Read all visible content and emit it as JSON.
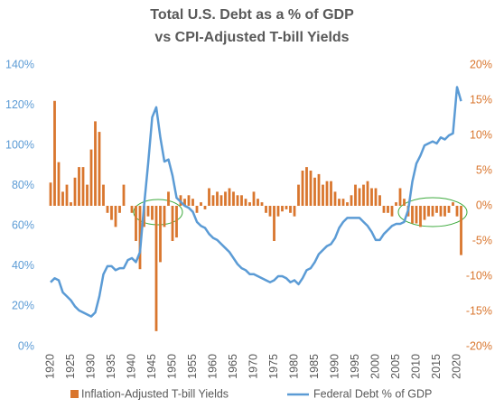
{
  "chart_data": {
    "type": "combo",
    "title": "Total U.S. Debt as a % of GDP",
    "subtitle": "vs CPI-Adjusted T-bill Yields",
    "x": [
      1920,
      1921,
      1922,
      1923,
      1924,
      1925,
      1926,
      1927,
      1928,
      1929,
      1930,
      1931,
      1932,
      1933,
      1934,
      1935,
      1936,
      1937,
      1938,
      1939,
      1940,
      1941,
      1942,
      1943,
      1944,
      1945,
      1946,
      1947,
      1948,
      1949,
      1950,
      1951,
      1952,
      1953,
      1954,
      1955,
      1956,
      1957,
      1958,
      1959,
      1960,
      1961,
      1962,
      1963,
      1964,
      1965,
      1966,
      1967,
      1968,
      1969,
      1970,
      1971,
      1972,
      1973,
      1974,
      1975,
      1976,
      1977,
      1978,
      1979,
      1980,
      1981,
      1982,
      1983,
      1984,
      1985,
      1986,
      1987,
      1988,
      1989,
      1990,
      1991,
      1992,
      1993,
      1994,
      1995,
      1996,
      1997,
      1998,
      1999,
      2000,
      2001,
      2002,
      2003,
      2004,
      2005,
      2006,
      2007,
      2008,
      2009,
      2010,
      2011,
      2012,
      2013,
      2014,
      2015,
      2016,
      2017,
      2018,
      2019,
      2020,
      2021
    ],
    "xlim": [
      1919,
      2022
    ],
    "xticks": [
      1920,
      1925,
      1930,
      1935,
      1940,
      1945,
      1950,
      1955,
      1960,
      1965,
      1970,
      1975,
      1980,
      1985,
      1990,
      1995,
      2000,
      2005,
      2010,
      2015,
      2020
    ],
    "ylim": [
      0,
      140
    ],
    "yticks": [
      {
        "value": 0,
        "label": "0%"
      },
      {
        "value": 20,
        "label": "20%"
      },
      {
        "value": 40,
        "label": "40%"
      },
      {
        "value": 60,
        "label": "60%"
      },
      {
        "value": 80,
        "label": "80%"
      },
      {
        "value": 100,
        "label": "100%"
      },
      {
        "value": 120,
        "label": "120%"
      },
      {
        "value": 140,
        "label": "140%"
      }
    ],
    "y2lim": [
      -20,
      20
    ],
    "y2ticks": [
      {
        "value": -20,
        "label": "-20%"
      },
      {
        "value": -15,
        "label": "-15%"
      },
      {
        "value": -10,
        "label": "-10%"
      },
      {
        "value": -5,
        "label": "-5%"
      },
      {
        "value": 0,
        "label": "0%"
      },
      {
        "value": 5,
        "label": "5%"
      },
      {
        "value": 10,
        "label": "10%"
      },
      {
        "value": 15,
        "label": "15%"
      },
      {
        "value": 20,
        "label": "20%"
      }
    ],
    "grid": false,
    "legend": "bottom",
    "series": [
      {
        "name": "Inflation-Adjusted T-bill Yields",
        "type": "bar",
        "axis": "y2",
        "color": "#d9762e",
        "values": [
          3.3,
          14.9,
          6.2,
          2,
          3,
          0.5,
          4,
          5.5,
          5.5,
          3,
          8,
          12,
          10.5,
          3,
          -1,
          -2,
          -3,
          -1,
          3,
          0,
          -1,
          -5,
          -9,
          -3,
          -1.5,
          -2,
          -17.8,
          -8,
          -3,
          2,
          -5,
          -4.5,
          1.5,
          1,
          1.5,
          1,
          -1,
          0.5,
          -0.5,
          2.5,
          1.5,
          2,
          1.5,
          2,
          2.5,
          2,
          1.5,
          1.5,
          1,
          0.5,
          2,
          1,
          0.5,
          -1,
          -1.5,
          -5,
          -1.5,
          -0.8,
          -0.5,
          -1,
          -1.5,
          3,
          5,
          5.5,
          5,
          4,
          4.5,
          3,
          3.5,
          3.5,
          2,
          1,
          1,
          0.5,
          1.5,
          3,
          2.5,
          3,
          3.5,
          2.5,
          2.5,
          1.5,
          -1,
          -1,
          -1.5,
          0.5,
          2.5,
          1,
          -1.5,
          -2.5,
          -2.5,
          -3,
          -2,
          -1.5,
          -1.5,
          -1,
          -1.5,
          -1.5,
          -1,
          0.5,
          -1.5,
          -7
        ]
      },
      {
        "name": "Federal Debt % of GDP",
        "type": "line",
        "color": "#5b9bd5",
        "values": [
          32,
          34,
          33,
          27,
          25,
          23,
          20,
          18,
          17,
          16,
          15,
          17,
          25,
          36,
          40,
          40,
          38,
          39,
          39,
          43,
          44,
          42,
          47,
          70,
          91,
          114,
          119,
          104,
          92,
          93,
          85,
          74,
          72,
          70,
          69,
          67,
          62,
          60,
          59,
          56,
          54,
          53,
          51,
          49,
          47,
          44,
          41,
          39,
          38,
          36,
          36,
          35,
          34,
          33,
          32,
          33,
          35,
          35,
          34,
          32,
          33,
          31,
          34,
          38,
          39,
          42,
          46,
          48,
          50,
          51,
          54,
          59,
          62,
          64,
          64,
          64,
          64,
          62,
          60,
          57,
          53,
          53,
          56,
          58,
          60,
          61,
          61,
          62,
          68,
          82,
          91,
          95,
          100,
          101,
          102,
          101,
          104,
          103,
          105,
          106,
          129,
          122
        ]
      }
    ]
  }
}
